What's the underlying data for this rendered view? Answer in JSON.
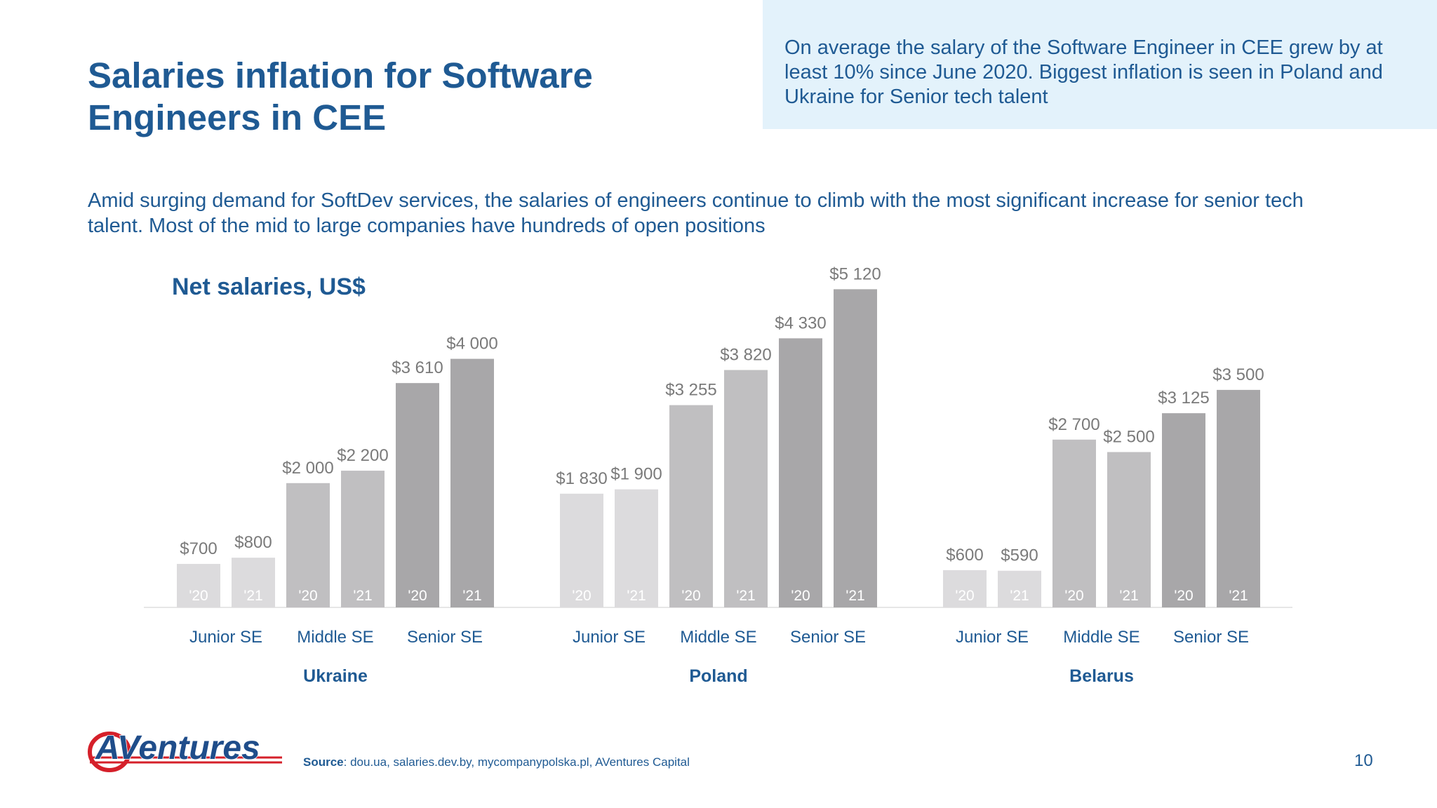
{
  "title": "Salaries inflation for Software Engineers in CEE",
  "callout": "On average the salary of the Software Engineer in CEE grew by at least 10% since June 2020. Biggest inflation is seen in Poland and Ukraine for Senior tech talent",
  "subtitle": "Amid surging demand for SoftDev services, the salaries of engineers continue to climb with the most significant increase for senior tech talent. Most of the mid to large companies have hundreds of open positions",
  "logo_text": "AVentures",
  "footer": {
    "source_label": "Source",
    "source_text": ": dou.ua, salaries.dev.by, mycompanypolska.pl, AVentures Capital",
    "page_number": "10"
  },
  "colors": {
    "title_blue": "#1f5a93",
    "callout_bg": "#e3f2fb",
    "junior": "#dcdbdd",
    "middle": "#c0bfc1",
    "senior": "#a8a7a9",
    "value_label": "#7a7a7a",
    "logo_red": "#d5202a"
  },
  "chart_data": {
    "type": "bar",
    "title": "Net salaries, US$",
    "ylim": [
      0,
      5500
    ],
    "grid": false,
    "year_labels": [
      "'20",
      "'21"
    ],
    "groups": [
      {
        "country": "Ukraine",
        "levels": [
          {
            "level": "Junior SE",
            "values": [
              700,
              800
            ],
            "labels": [
              "$700",
              "$800"
            ]
          },
          {
            "level": "Middle SE",
            "values": [
              2000,
              2200
            ],
            "labels": [
              "$2 000",
              "$2 200"
            ]
          },
          {
            "level": "Senior SE",
            "values": [
              3610,
              4000
            ],
            "labels": [
              "$3 610",
              "$4 000"
            ]
          }
        ]
      },
      {
        "country": "Poland",
        "levels": [
          {
            "level": "Junior SE",
            "values": [
              1830,
              1900
            ],
            "labels": [
              "$1 830",
              "$1 900"
            ]
          },
          {
            "level": "Middle SE",
            "values": [
              3255,
              3820
            ],
            "labels": [
              "$3 255",
              "$3 820"
            ]
          },
          {
            "level": "Senior SE",
            "values": [
              4330,
              5120
            ],
            "labels": [
              "$4 330",
              "$5 120"
            ]
          }
        ]
      },
      {
        "country": "Belarus",
        "levels": [
          {
            "level": "Junior SE",
            "values": [
              600,
              590
            ],
            "labels": [
              "$600",
              "$590"
            ]
          },
          {
            "level": "Middle SE",
            "values": [
              2700,
              2500
            ],
            "labels": [
              "$2 700",
              "$2 500"
            ]
          },
          {
            "level": "Senior SE",
            "values": [
              3125,
              3500
            ],
            "labels": [
              "$3 125",
              "$3 500"
            ]
          }
        ]
      }
    ]
  }
}
